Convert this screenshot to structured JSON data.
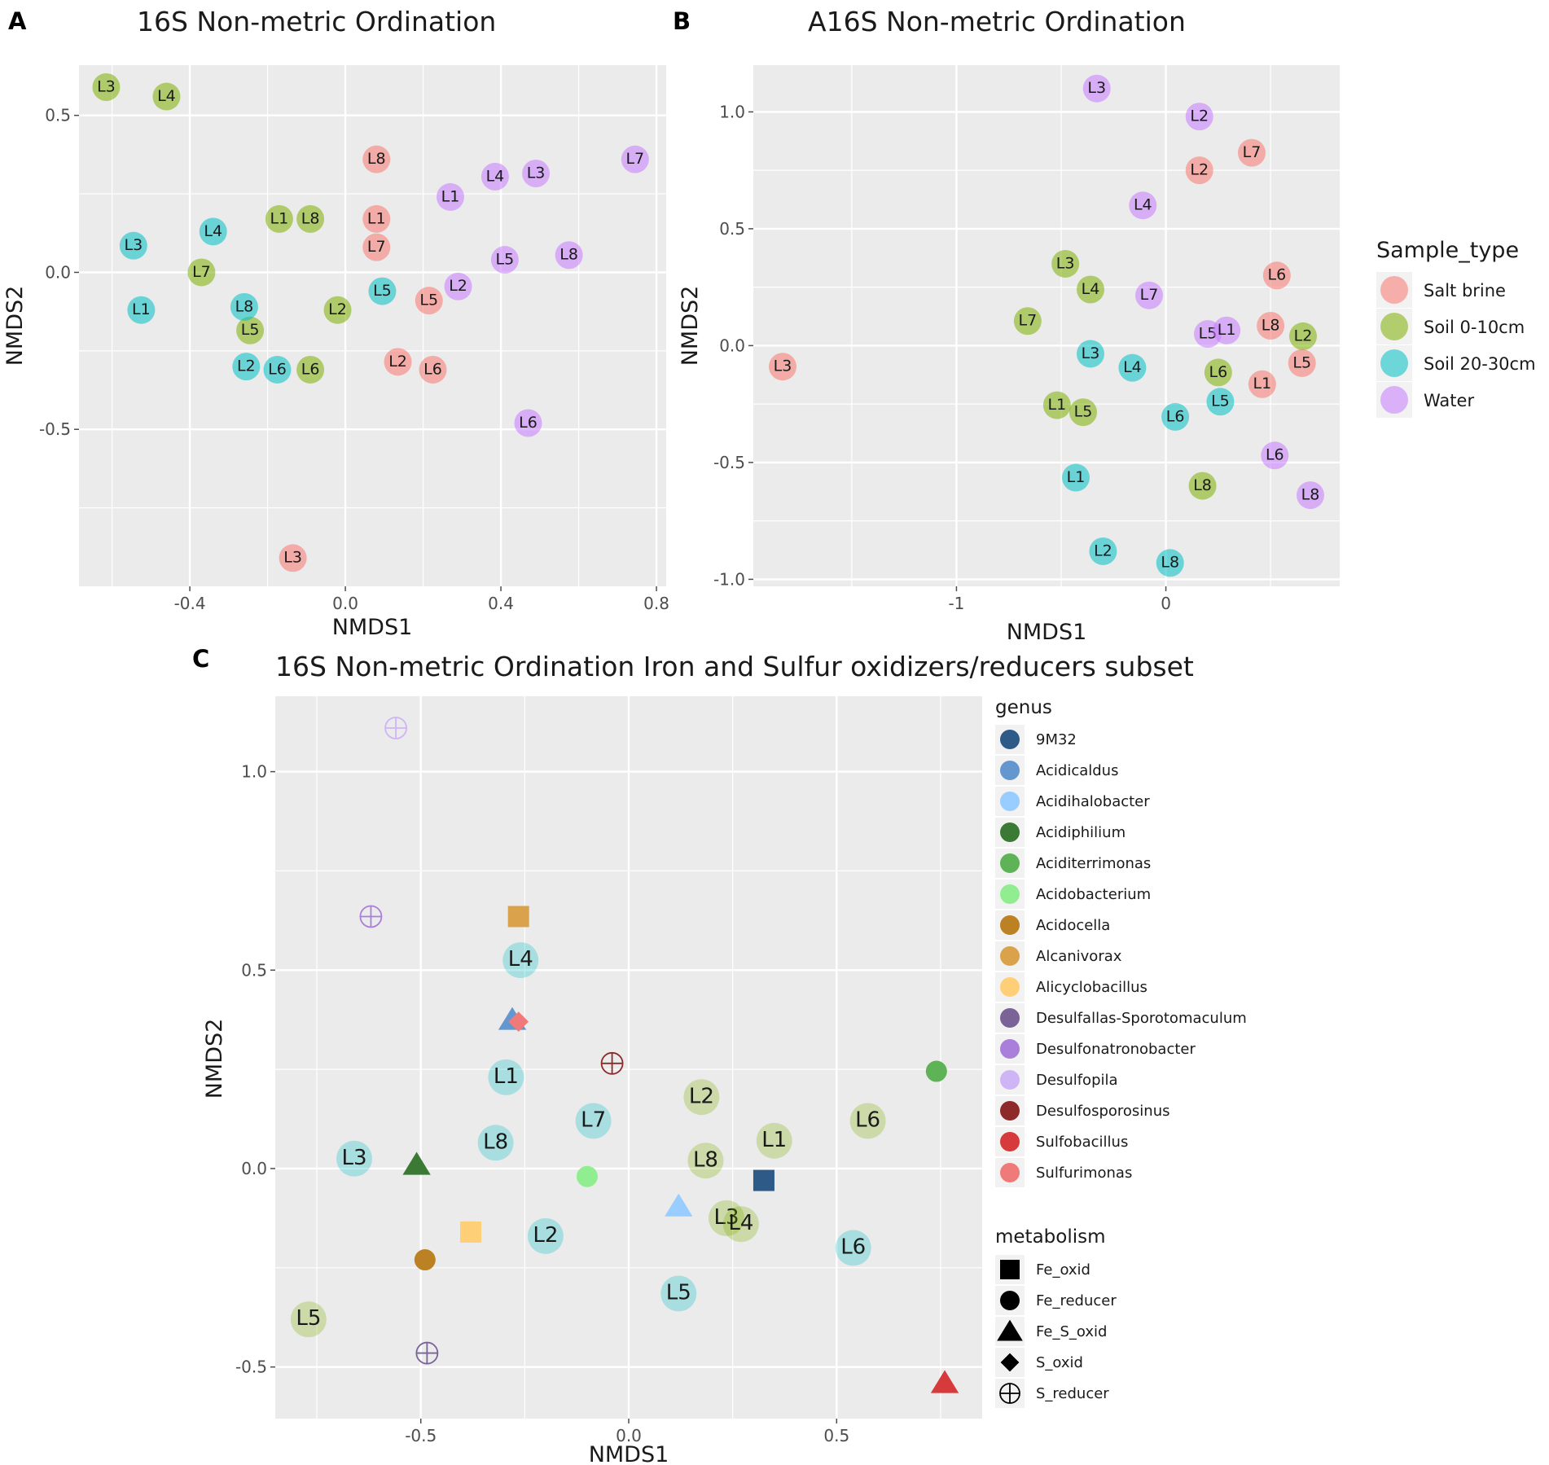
{
  "chart_data": [
    {
      "panel": "A",
      "type": "scatter",
      "title": "16S Non-metric Ordination",
      "xlabel": "NMDS1",
      "ylabel": "NMDS2",
      "xlim": [
        -0.685,
        0.825
      ],
      "ylim": [
        -1.0,
        0.66
      ],
      "xticks": [
        -0.4,
        0.0,
        0.4,
        0.8
      ],
      "xtick_labels": [
        "-0.4",
        "0.0",
        "0.4",
        "0.8"
      ],
      "yticks": [
        -0.5,
        0.0,
        0.5
      ],
      "ytick_labels": [
        "-0.5",
        "0.0",
        "0.5"
      ],
      "grid": true,
      "legend": "shared with panel B",
      "points": [
        {
          "label": "L3",
          "group": "Soil 0-10cm",
          "x": -0.615,
          "y": 0.59
        },
        {
          "label": "L4",
          "group": "Soil 0-10cm",
          "x": -0.46,
          "y": 0.56
        },
        {
          "label": "L1",
          "group": "Soil 0-10cm",
          "x": -0.17,
          "y": 0.17
        },
        {
          "label": "L8",
          "group": "Soil 0-10cm",
          "x": -0.09,
          "y": 0.17
        },
        {
          "label": "L7",
          "group": "Soil 0-10cm",
          "x": -0.37,
          "y": 0.0
        },
        {
          "label": "L5",
          "group": "Soil 0-10cm",
          "x": -0.245,
          "y": -0.185
        },
        {
          "label": "L2",
          "group": "Soil 0-10cm",
          "x": -0.02,
          "y": -0.12
        },
        {
          "label": "L6",
          "group": "Soil 0-10cm",
          "x": -0.09,
          "y": -0.31
        },
        {
          "label": "L3",
          "group": "Soil 20-30cm",
          "x": -0.545,
          "y": 0.085
        },
        {
          "label": "L4",
          "group": "Soil 20-30cm",
          "x": -0.34,
          "y": 0.13
        },
        {
          "label": "L1",
          "group": "Soil 20-30cm",
          "x": -0.525,
          "y": -0.12
        },
        {
          "label": "L8",
          "group": "Soil 20-30cm",
          "x": -0.26,
          "y": -0.11
        },
        {
          "label": "L2",
          "group": "Soil 20-30cm",
          "x": -0.255,
          "y": -0.3
        },
        {
          "label": "L6",
          "group": "Soil 20-30cm",
          "x": -0.175,
          "y": -0.31
        },
        {
          "label": "L5",
          "group": "Soil 20-30cm",
          "x": 0.095,
          "y": -0.06
        },
        {
          "label": "L8",
          "group": "Salt brine",
          "x": 0.08,
          "y": 0.36
        },
        {
          "label": "L1",
          "group": "Salt brine",
          "x": 0.08,
          "y": 0.17
        },
        {
          "label": "L7",
          "group": "Salt brine",
          "x": 0.08,
          "y": 0.08
        },
        {
          "label": "L5",
          "group": "Salt brine",
          "x": 0.215,
          "y": -0.09
        },
        {
          "label": "L2",
          "group": "Salt brine",
          "x": 0.135,
          "y": -0.285
        },
        {
          "label": "L6",
          "group": "Salt brine",
          "x": 0.225,
          "y": -0.31
        },
        {
          "label": "L3",
          "group": "Salt brine",
          "x": -0.135,
          "y": -0.91
        },
        {
          "label": "L1",
          "group": "Water",
          "x": 0.27,
          "y": 0.24
        },
        {
          "label": "L4",
          "group": "Water",
          "x": 0.385,
          "y": 0.305
        },
        {
          "label": "L3",
          "group": "Water",
          "x": 0.49,
          "y": 0.315
        },
        {
          "label": "L7",
          "group": "Water",
          "x": 0.745,
          "y": 0.36
        },
        {
          "label": "L5",
          "group": "Water",
          "x": 0.41,
          "y": 0.04
        },
        {
          "label": "L8",
          "group": "Water",
          "x": 0.575,
          "y": 0.055
        },
        {
          "label": "L2",
          "group": "Water",
          "x": 0.29,
          "y": -0.045
        },
        {
          "label": "L6",
          "group": "Water",
          "x": 0.47,
          "y": -0.48
        }
      ]
    },
    {
      "panel": "B",
      "type": "scatter",
      "title": "A16S Non-metric Ordination",
      "xlabel": "NMDS1",
      "ylabel": "NMDS2",
      "xlim": [
        -1.97,
        0.83
      ],
      "ylim": [
        -1.03,
        1.2
      ],
      "xticks": [
        -1,
        0
      ],
      "xtick_labels": [
        "-1",
        "0"
      ],
      "yticks": [
        -1.0,
        -0.5,
        0.0,
        0.5,
        1.0
      ],
      "ytick_labels": [
        "-1.0",
        "-0.5",
        "0.0",
        "0.5",
        "1.0"
      ],
      "grid": true,
      "legend": "right",
      "legend_title": "Sample_type",
      "points": [
        {
          "label": "L3",
          "group": "Water",
          "x": -0.33,
          "y": 1.1
        },
        {
          "label": "L2",
          "group": "Water",
          "x": 0.16,
          "y": 0.98
        },
        {
          "label": "L4",
          "group": "Water",
          "x": -0.11,
          "y": 0.6
        },
        {
          "label": "L7",
          "group": "Water",
          "x": -0.08,
          "y": 0.215
        },
        {
          "label": "L5",
          "group": "Water",
          "x": 0.2,
          "y": 0.05
        },
        {
          "label": "L1",
          "group": "Water",
          "x": 0.29,
          "y": 0.065
        },
        {
          "label": "L6",
          "group": "Water",
          "x": 0.52,
          "y": -0.47
        },
        {
          "label": "L8",
          "group": "Water",
          "x": 0.69,
          "y": -0.64
        },
        {
          "label": "L7",
          "group": "Salt brine",
          "x": 0.41,
          "y": 0.825
        },
        {
          "label": "L2",
          "group": "Salt brine",
          "x": 0.16,
          "y": 0.75
        },
        {
          "label": "L6",
          "group": "Salt brine",
          "x": 0.53,
          "y": 0.3
        },
        {
          "label": "L8",
          "group": "Salt brine",
          "x": 0.5,
          "y": 0.085
        },
        {
          "label": "L5",
          "group": "Salt brine",
          "x": 0.65,
          "y": -0.075
        },
        {
          "label": "L1",
          "group": "Salt brine",
          "x": 0.46,
          "y": -0.165
        },
        {
          "label": "L3",
          "group": "Salt brine",
          "x": -1.83,
          "y": -0.09
        },
        {
          "label": "L3",
          "group": "Soil 0-10cm",
          "x": -0.48,
          "y": 0.35
        },
        {
          "label": "L4",
          "group": "Soil 0-10cm",
          "x": -0.36,
          "y": 0.24
        },
        {
          "label": "L7",
          "group": "Soil 0-10cm",
          "x": -0.66,
          "y": 0.105
        },
        {
          "label": "L1",
          "group": "Soil 0-10cm",
          "x": -0.52,
          "y": -0.255
        },
        {
          "label": "L5",
          "group": "Soil 0-10cm",
          "x": -0.395,
          "y": -0.285
        },
        {
          "label": "L6",
          "group": "Soil 0-10cm",
          "x": 0.25,
          "y": -0.115
        },
        {
          "label": "L8",
          "group": "Soil 0-10cm",
          "x": 0.175,
          "y": -0.6
        },
        {
          "label": "L2",
          "group": "Soil 0-10cm",
          "x": 0.655,
          "y": 0.04
        },
        {
          "label": "L3",
          "group": "Soil 20-30cm",
          "x": -0.36,
          "y": -0.035
        },
        {
          "label": "L4",
          "group": "Soil 20-30cm",
          "x": -0.16,
          "y": -0.095
        },
        {
          "label": "L5",
          "group": "Soil 20-30cm",
          "x": 0.26,
          "y": -0.24
        },
        {
          "label": "L6",
          "group": "Soil 20-30cm",
          "x": 0.045,
          "y": -0.305
        },
        {
          "label": "L1",
          "group": "Soil 20-30cm",
          "x": -0.43,
          "y": -0.565
        },
        {
          "label": "L2",
          "group": "Soil 20-30cm",
          "x": -0.3,
          "y": -0.88
        },
        {
          "label": "L8",
          "group": "Soil 20-30cm",
          "x": 0.02,
          "y": -0.93
        }
      ]
    },
    {
      "panel": "C",
      "type": "scatter",
      "title": "16S Non-metric Ordination Iron and Sulfur oxidizers/reducers subset",
      "xlabel": "NMDS1",
      "ylabel": "NMDS2",
      "xlim": [
        -0.85,
        0.85
      ],
      "ylim": [
        -0.63,
        1.19
      ],
      "xticks": [
        -0.5,
        0.0,
        0.5
      ],
      "xtick_labels": [
        "-0.5",
        "0.0",
        "0.5"
      ],
      "yticks": [
        -0.5,
        0.0,
        0.5,
        1.0
      ],
      "ytick_labels": [
        "-0.5",
        "0.0",
        "0.5",
        "1.0"
      ],
      "grid": true,
      "legend": "right",
      "genus_legend_title": "genus",
      "metabolism_legend_title": "metabolism",
      "sample_points": [
        {
          "label": "L4",
          "group": "Soil 20-30cm",
          "x": -0.26,
          "y": 0.525
        },
        {
          "label": "L1",
          "group": "Soil 20-30cm",
          "x": -0.295,
          "y": 0.23
        },
        {
          "label": "L7",
          "group": "Soil 20-30cm",
          "x": -0.085,
          "y": 0.12
        },
        {
          "label": "L8",
          "group": "Soil 20-30cm",
          "x": -0.32,
          "y": 0.065
        },
        {
          "label": "L3",
          "group": "Soil 20-30cm",
          "x": -0.66,
          "y": 0.025
        },
        {
          "label": "L2",
          "group": "Soil 20-30cm",
          "x": -0.2,
          "y": -0.17
        },
        {
          "label": "L5",
          "group": "Soil 20-30cm",
          "x": 0.12,
          "y": -0.315
        },
        {
          "label": "L6",
          "group": "Soil 20-30cm",
          "x": 0.54,
          "y": -0.2
        },
        {
          "label": "L2",
          "group": "Soil 0-10cm",
          "x": 0.175,
          "y": 0.18
        },
        {
          "label": "L8",
          "group": "Soil 0-10cm",
          "x": 0.185,
          "y": 0.02
        },
        {
          "label": "L1",
          "group": "Soil 0-10cm",
          "x": 0.35,
          "y": 0.07
        },
        {
          "label": "L6",
          "group": "Soil 0-10cm",
          "x": 0.575,
          "y": 0.12
        },
        {
          "label": "L3",
          "group": "Soil 0-10cm",
          "x": 0.235,
          "y": -0.125
        },
        {
          "label": "L4",
          "group": "Soil 0-10cm",
          "x": 0.27,
          "y": -0.14
        },
        {
          "label": "L5",
          "group": "Soil 0-10cm",
          "x": -0.77,
          "y": -0.38
        }
      ],
      "genus_points": [
        {
          "genus": "Desulfopila",
          "metabolism": "S_reducer",
          "x": -0.56,
          "y": 1.11
        },
        {
          "genus": "Desulfonatronobacter",
          "metabolism": "S_reducer",
          "x": -0.62,
          "y": 0.635
        },
        {
          "genus": "Alcanivorax",
          "metabolism": "Fe_oxid",
          "x": -0.265,
          "y": 0.635
        },
        {
          "genus": "Acidicaldus",
          "metabolism": "Fe_S_oxid",
          "x": -0.28,
          "y": 0.375
        },
        {
          "genus": "Sulfurimonas",
          "metabolism": "S_oxid",
          "x": -0.265,
          "y": 0.37
        },
        {
          "genus": "Desulfosporosinus",
          "metabolism": "S_reducer",
          "x": -0.04,
          "y": 0.265
        },
        {
          "genus": "Aciditerrimonas",
          "metabolism": "Fe_reducer",
          "x": 0.74,
          "y": 0.245
        },
        {
          "genus": "Acidiphilium",
          "metabolism": "Fe_S_oxid",
          "x": -0.51,
          "y": 0.01
        },
        {
          "genus": "Acidobacterium",
          "metabolism": "Fe_reducer",
          "x": -0.1,
          "y": -0.02
        },
        {
          "genus": "9M32",
          "metabolism": "Fe_oxid",
          "x": 0.325,
          "y": -0.03
        },
        {
          "genus": "Acidihalobacter",
          "metabolism": "Fe_S_oxid",
          "x": 0.12,
          "y": -0.095
        },
        {
          "genus": "Alicyclobacillus",
          "metabolism": "Fe_oxid",
          "x": -0.38,
          "y": -0.16
        },
        {
          "genus": "Acidocella",
          "metabolism": "Fe_reducer",
          "x": -0.49,
          "y": -0.23
        },
        {
          "genus": "Desulfallas-Sporotomaculum",
          "metabolism": "S_reducer",
          "x": -0.485,
          "y": -0.465
        },
        {
          "genus": "Sulfobacillus",
          "metabolism": "Fe_S_oxid",
          "x": 0.76,
          "y": -0.54
        }
      ]
    }
  ],
  "sample_legend": [
    {
      "name": "Salt brine",
      "color": "#F8766D"
    },
    {
      "name": "Soil 0-10cm",
      "color": "#7CAE00"
    },
    {
      "name": "Soil 20-30cm",
      "color": "#00BFC4"
    },
    {
      "name": "Water",
      "color": "#C77CFF"
    }
  ],
  "genus_legend": [
    {
      "name": "9M32",
      "color": "#2E5A88"
    },
    {
      "name": "Acidicaldus",
      "color": "#6496CF"
    },
    {
      "name": "Acidihalobacter",
      "color": "#99CCFF"
    },
    {
      "name": "Acidiphilium",
      "color": "#3B7A34"
    },
    {
      "name": "Aciditerrimonas",
      "color": "#5DB356"
    },
    {
      "name": "Acidobacterium",
      "color": "#90EE90"
    },
    {
      "name": "Acidocella",
      "color": "#BC8122"
    },
    {
      "name": "Alcanivorax",
      "color": "#D9A24B"
    },
    {
      "name": "Alicyclobacillus",
      "color": "#FFCF78"
    },
    {
      "name": "Desulfallas-Sporotomaculum",
      "color": "#7A6396"
    },
    {
      "name": "Desulfonatronobacter",
      "color": "#A97FDB"
    },
    {
      "name": "Desulfopila",
      "color": "#CFB5F5"
    },
    {
      "name": "Desulfosporosinus",
      "color": "#8E2A2A"
    },
    {
      "name": "Sulfobacillus",
      "color": "#D63A3A"
    },
    {
      "name": "Sulfurimonas",
      "color": "#F07A7A"
    }
  ],
  "metabolism_legend": [
    {
      "name": "Fe_oxid",
      "shape": "square"
    },
    {
      "name": "Fe_reducer",
      "shape": "circle"
    },
    {
      "name": "Fe_S_oxid",
      "shape": "triangle"
    },
    {
      "name": "S_oxid",
      "shape": "diamond"
    },
    {
      "name": "S_reducer",
      "shape": "circle-plus"
    }
  ]
}
